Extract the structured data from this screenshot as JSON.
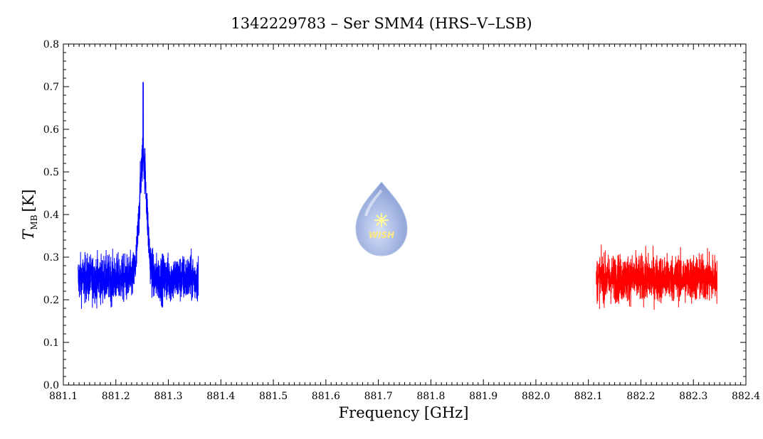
{
  "chart_data": {
    "type": "line",
    "title": "1342229783 – Ser SMM4 (HRS–V–LSB)",
    "xlabel": "Frequency [GHz]",
    "ylabel_main": "T",
    "ylabel_sub": "MB",
    "ylabel_unit": "[K]",
    "xlim": [
      881.1,
      882.4
    ],
    "ylim": [
      0.0,
      0.8
    ],
    "x_ticks": [
      "881.1",
      "881.2",
      "881.3",
      "881.4",
      "881.5",
      "881.6",
      "881.7",
      "881.8",
      "881.9",
      "882.0",
      "882.1",
      "882.2",
      "882.3",
      "882.4"
    ],
    "y_ticks": [
      "0.0",
      "0.1",
      "0.2",
      "0.3",
      "0.4",
      "0.5",
      "0.6",
      "0.7",
      "0.8"
    ],
    "grid": false,
    "series": [
      {
        "color": "#0000ff",
        "x_range": [
          881.128,
          881.357
        ],
        "baseline": 0.25,
        "noise_amplitude": 0.06,
        "peak": {
          "center": 881.252,
          "max": 0.71,
          "width": 0.007
        }
      },
      {
        "color": "#ff0000",
        "x_range": [
          882.115,
          882.345
        ],
        "baseline": 0.25,
        "noise_amplitude": 0.06
      }
    ],
    "logo": {
      "text": "WISH",
      "position": "center"
    }
  }
}
